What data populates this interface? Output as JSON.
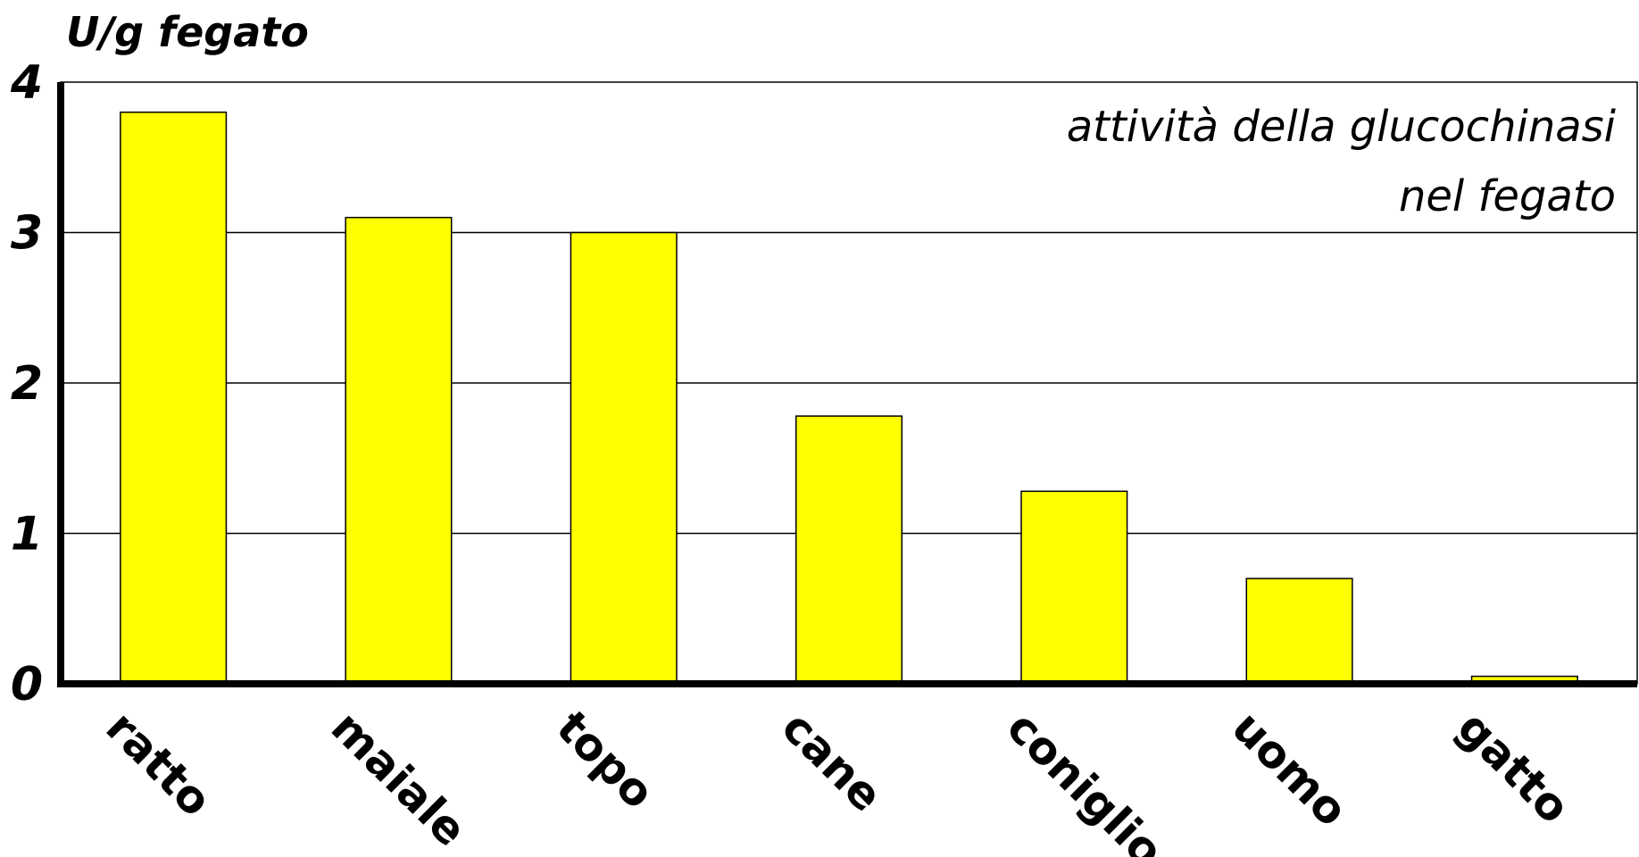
{
  "chart_data": {
    "type": "bar",
    "title": "",
    "ylabel": "U/g fegato",
    "xlabel": "",
    "annotation": [
      "attività della glucochinasi",
      "nel fegato"
    ],
    "categories": [
      "ratto",
      "maiale",
      "topo",
      "cane",
      "coniglio",
      "uomo",
      "gatto"
    ],
    "values": [
      3.8,
      3.1,
      3.0,
      1.78,
      1.28,
      0.7,
      0.05
    ],
    "ylim": [
      0,
      4
    ],
    "yticks": [
      "0",
      "1",
      "2",
      "3",
      "4"
    ],
    "grid": true,
    "bar_color": "#ffff00",
    "legend": "none"
  }
}
